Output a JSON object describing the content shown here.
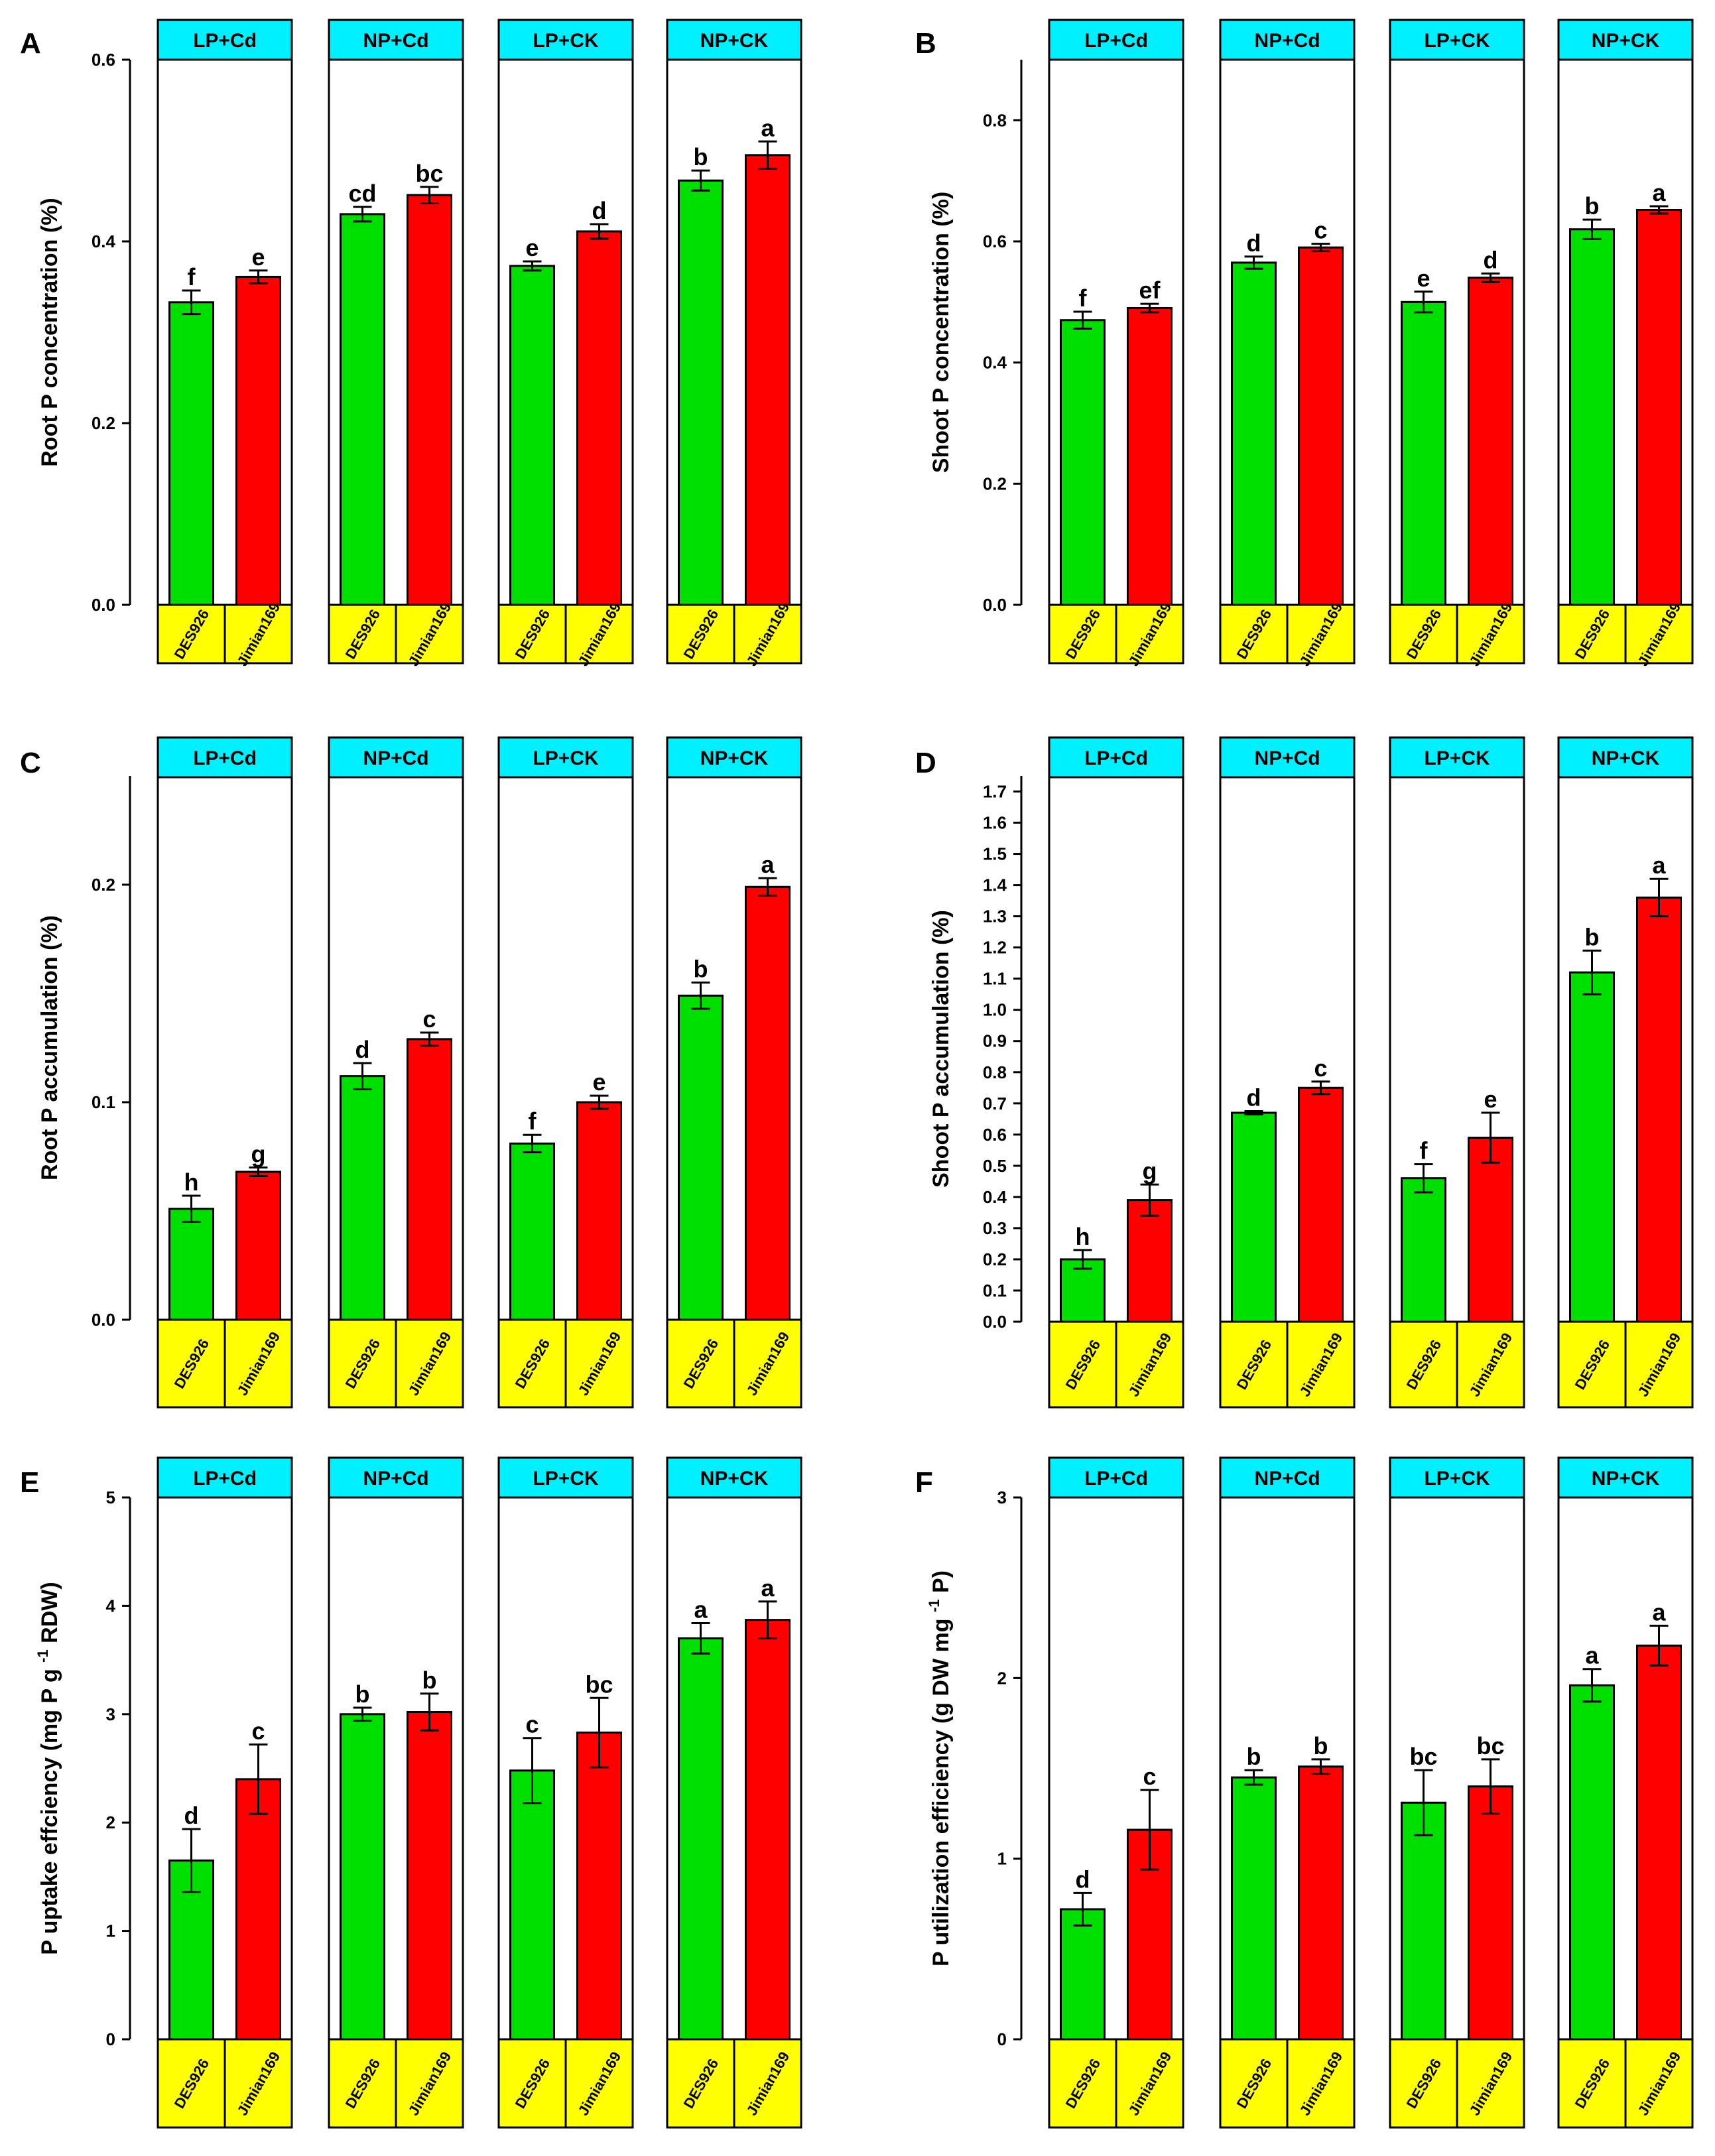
{
  "colors": {
    "green": "#00e000",
    "red": "#ff0000",
    "header": "#00f0ff",
    "footer": "#ffff00",
    "line": "#000000"
  },
  "chart_data": [
    {
      "panel_label": "A",
      "type": "bar",
      "ylabel": "Root P concentration (%)",
      "ylim": [
        0,
        0.6
      ],
      "yticks": [
        "0.0",
        "0.2",
        "0.4",
        "0.6"
      ],
      "groups": [
        "LP+Cd",
        "NP+Cd",
        "LP+CK",
        "NP+CK"
      ],
      "categories": [
        "DES926",
        "Jimian169"
      ],
      "values": [
        [
          0.333,
          0.361
        ],
        [
          0.43,
          0.451
        ],
        [
          0.373,
          0.411
        ],
        [
          0.467,
          0.495
        ]
      ],
      "errors": [
        [
          0.013,
          0.007
        ],
        [
          0.008,
          0.009
        ],
        [
          0.005,
          0.008
        ],
        [
          0.011,
          0.015
        ]
      ],
      "letters": [
        [
          "f",
          "e"
        ],
        [
          "cd",
          "bc"
        ],
        [
          "e",
          "d"
        ],
        [
          "b",
          "a"
        ]
      ]
    },
    {
      "panel_label": "B",
      "type": "bar",
      "ylabel": "Shoot P concentration (%)",
      "ylim": [
        0,
        0.9
      ],
      "yticks": [
        "0.0",
        "0.2",
        "0.4",
        "0.6",
        "0.8"
      ],
      "groups": [
        "LP+Cd",
        "NP+Cd",
        "LP+CK",
        "NP+CK"
      ],
      "categories": [
        "DES926",
        "Jimian169"
      ],
      "values": [
        [
          0.47,
          0.49
        ],
        [
          0.565,
          0.59
        ],
        [
          0.5,
          0.54
        ],
        [
          0.62,
          0.652
        ]
      ],
      "errors": [
        [
          0.014,
          0.007
        ],
        [
          0.01,
          0.006
        ],
        [
          0.017,
          0.007
        ],
        [
          0.016,
          0.006
        ]
      ],
      "letters": [
        [
          "f",
          "ef"
        ],
        [
          "d",
          "c"
        ],
        [
          "e",
          "d"
        ],
        [
          "b",
          "a"
        ]
      ]
    },
    {
      "panel_label": "C",
      "type": "bar",
      "ylabel": "Root P accumulation (%)",
      "ylim": [
        0,
        0.25
      ],
      "yticks": [
        "0.0",
        "0.1",
        "0.2"
      ],
      "groups": [
        "LP+Cd",
        "NP+Cd",
        "LP+CK",
        "NP+CK"
      ],
      "categories": [
        "DES926",
        "Jimian169"
      ],
      "values": [
        [
          0.051,
          0.068
        ],
        [
          0.112,
          0.129
        ],
        [
          0.081,
          0.1
        ],
        [
          0.149,
          0.199
        ]
      ],
      "errors": [
        [
          0.006,
          0.002
        ],
        [
          0.006,
          0.003
        ],
        [
          0.004,
          0.003
        ],
        [
          0.006,
          0.004
        ]
      ],
      "letters": [
        [
          "h",
          "g"
        ],
        [
          "d",
          "c"
        ],
        [
          "f",
          "e"
        ],
        [
          "b",
          "a"
        ]
      ]
    },
    {
      "panel_label": "D",
      "type": "bar",
      "ylabel": "Shoot P accumulation (%)",
      "ylim": [
        0,
        1.75
      ],
      "yticks": [
        "0.0",
        "0.1",
        "0.2",
        "0.3",
        "0.4",
        "0.5",
        "0.6",
        "0.7",
        "0.8",
        "0.9",
        "1.0",
        "1.1",
        "1.2",
        "1.3",
        "1.4",
        "1.5",
        "1.6",
        "1.7"
      ],
      "groups": [
        "LP+Cd",
        "NP+Cd",
        "LP+CK",
        "NP+CK"
      ],
      "categories": [
        "DES926",
        "Jimian169"
      ],
      "values": [
        [
          0.2,
          0.39
        ],
        [
          0.67,
          0.75
        ],
        [
          0.46,
          0.59
        ],
        [
          1.12,
          1.36
        ]
      ],
      "errors": [
        [
          0.03,
          0.05
        ],
        [
          0.005,
          0.02
        ],
        [
          0.045,
          0.08
        ],
        [
          0.07,
          0.06
        ]
      ],
      "letters": [
        [
          "h",
          "g"
        ],
        [
          "d",
          "c"
        ],
        [
          "f",
          "e"
        ],
        [
          "b",
          "a"
        ]
      ]
    },
    {
      "panel_label": "E",
      "type": "bar",
      "ylabel": "P uptake effciency (mg P g-1 RDW)",
      "ylim": [
        0,
        5
      ],
      "yticks": [
        "0",
        "1",
        "2",
        "3",
        "4",
        "5"
      ],
      "groups": [
        "LP+Cd",
        "NP+Cd",
        "LP+CK",
        "NP+CK"
      ],
      "categories": [
        "DES926",
        "Jimian169"
      ],
      "values": [
        [
          1.65,
          2.4
        ],
        [
          3.0,
          3.02
        ],
        [
          2.48,
          2.83
        ],
        [
          3.7,
          3.87
        ]
      ],
      "errors": [
        [
          0.29,
          0.32
        ],
        [
          0.06,
          0.17
        ],
        [
          0.3,
          0.32
        ],
        [
          0.14,
          0.17
        ]
      ],
      "letters": [
        [
          "d",
          "c"
        ],
        [
          "b",
          "b"
        ],
        [
          "c",
          "bc"
        ],
        [
          "a",
          "a"
        ]
      ]
    },
    {
      "panel_label": "F",
      "type": "bar",
      "ylabel": "P utilization efficiency (g DW mg-1 P)",
      "ylim": [
        0,
        3
      ],
      "yticks": [
        "0",
        "1",
        "2",
        "3"
      ],
      "groups": [
        "LP+Cd",
        "NP+Cd",
        "LP+CK",
        "NP+CK"
      ],
      "categories": [
        "DES926",
        "Jimian169"
      ],
      "values": [
        [
          0.72,
          1.16
        ],
        [
          1.45,
          1.51
        ],
        [
          1.31,
          1.4
        ],
        [
          1.96,
          2.18
        ]
      ],
      "errors": [
        [
          0.09,
          0.22
        ],
        [
          0.04,
          0.04
        ],
        [
          0.18,
          0.15
        ],
        [
          0.09,
          0.11
        ]
      ],
      "letters": [
        [
          "d",
          "c"
        ],
        [
          "b",
          "b"
        ],
        [
          "bc",
          "bc"
        ],
        [
          "a",
          "a"
        ]
      ]
    }
  ]
}
